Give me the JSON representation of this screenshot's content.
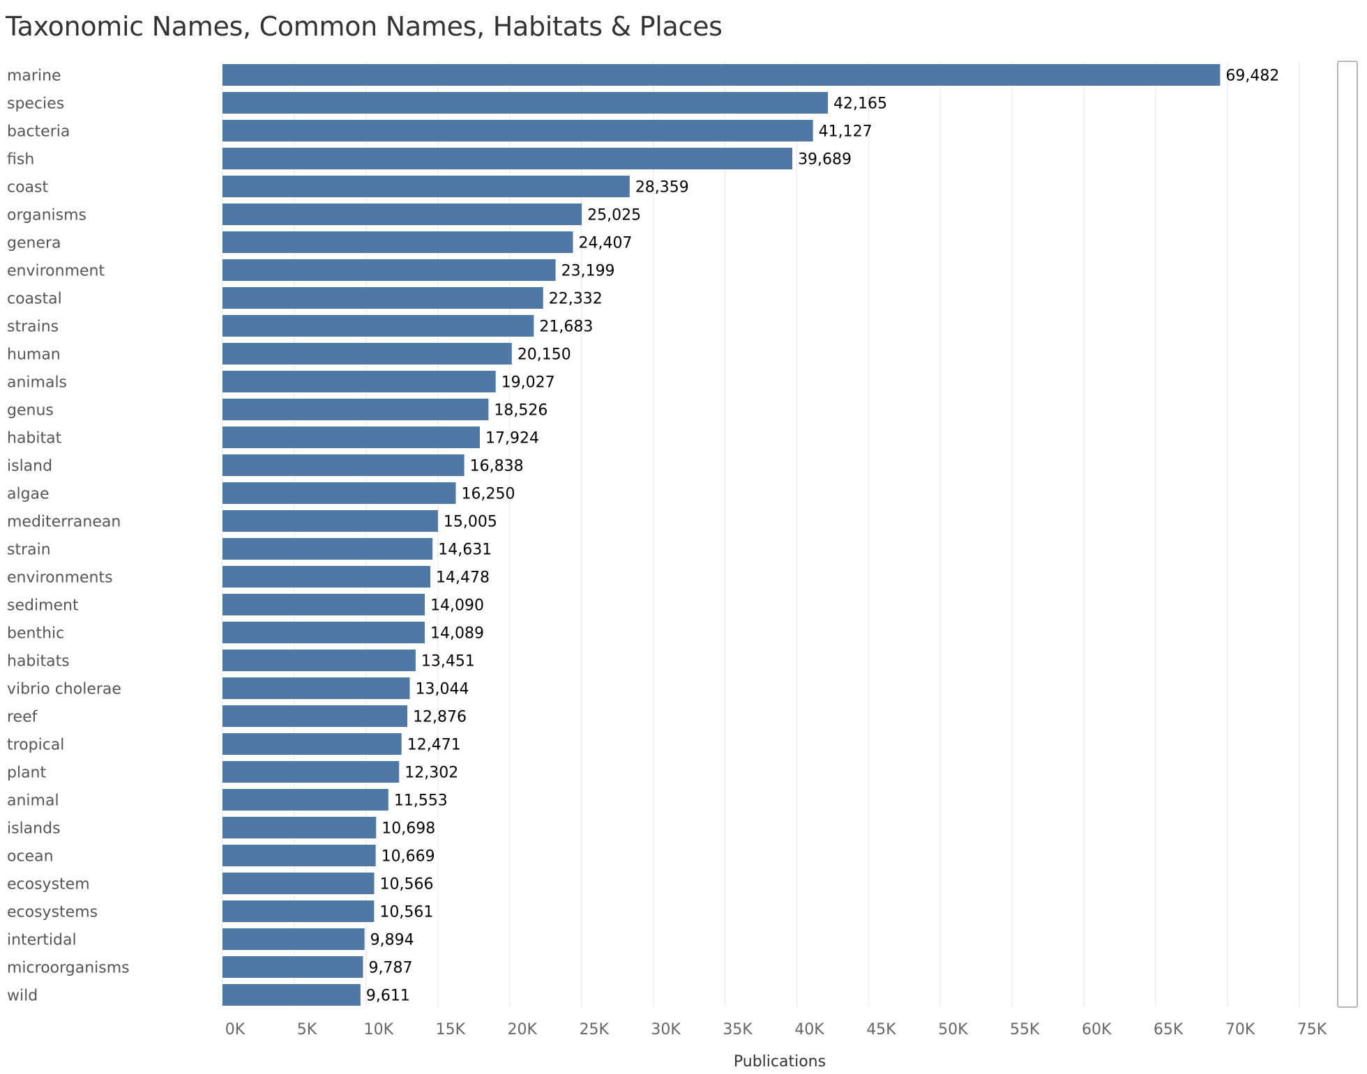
{
  "chart_data": {
    "type": "bar",
    "orientation": "horizontal",
    "title": "Taxonomic Names, Common Names, Habitats & Places",
    "xlabel": "Publications",
    "ylabel": "",
    "xlim": [
      0,
      75000
    ],
    "grid": true,
    "bar_color": "#4e79a7",
    "categories": [
      "marine",
      "species",
      "bacteria",
      "fish",
      "coast",
      "organisms",
      "genera",
      "environment",
      "coastal",
      "strains",
      "human",
      "animals",
      "genus",
      "habitat",
      "island",
      "algae",
      "mediterranean",
      "strain",
      "environments",
      "sediment",
      "benthic",
      "habitats",
      "vibrio cholerae",
      "reef",
      "tropical",
      "plant",
      "animal",
      "islands",
      "ocean",
      "ecosystem",
      "ecosystems",
      "intertidal",
      "microorganisms",
      "wild"
    ],
    "values": [
      69482,
      42165,
      41127,
      39689,
      28359,
      25025,
      24407,
      23199,
      22332,
      21683,
      20150,
      19027,
      18526,
      17924,
      16838,
      16250,
      15005,
      14631,
      14478,
      14090,
      14089,
      13451,
      13044,
      12876,
      12471,
      12302,
      11553,
      10698,
      10669,
      10566,
      10561,
      9894,
      9787,
      9611
    ],
    "value_labels": [
      "69,482",
      "42,165",
      "41,127",
      "39,689",
      "28,359",
      "25,025",
      "24,407",
      "23,199",
      "22,332",
      "21,683",
      "20,150",
      "19,027",
      "18,526",
      "17,924",
      "16,838",
      "16,250",
      "15,005",
      "14,631",
      "14,478",
      "14,090",
      "14,089",
      "13,451",
      "13,044",
      "12,876",
      "12,471",
      "12,302",
      "11,553",
      "10,698",
      "10,669",
      "10,566",
      "10,561",
      "9,894",
      "9,787",
      "9,611"
    ],
    "tick_values": [
      0,
      5000,
      10000,
      15000,
      20000,
      25000,
      30000,
      35000,
      40000,
      45000,
      50000,
      55000,
      60000,
      65000,
      70000,
      75000
    ],
    "tick_labels": [
      "0K",
      "5K",
      "10K",
      "15K",
      "20K",
      "25K",
      "30K",
      "35K",
      "40K",
      "45K",
      "50K",
      "55K",
      "60K",
      "65K",
      "70K",
      "75K"
    ]
  }
}
